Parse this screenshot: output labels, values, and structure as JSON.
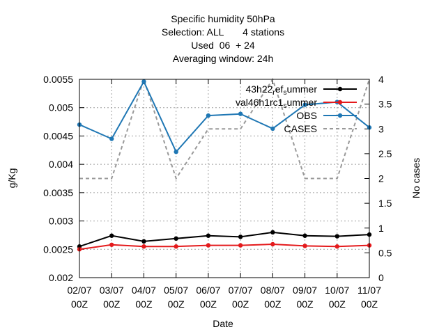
{
  "chart_data": {
    "type": "line",
    "title_lines": [
      "Specific humidity 50hPa",
      "Selection: ALL       4 stations",
      "Used  06  + 24",
      "Averaging window: 24h"
    ],
    "xlabel": "Date",
    "ylabel": "g/Kg",
    "y2label": "No cases",
    "categories": [
      [
        "02/07",
        "00Z"
      ],
      [
        "03/07",
        "00Z"
      ],
      [
        "04/07",
        "00Z"
      ],
      [
        "05/07",
        "00Z"
      ],
      [
        "06/07",
        "00Z"
      ],
      [
        "07/07",
        "00Z"
      ],
      [
        "08/07",
        "00Z"
      ],
      [
        "09/07",
        "00Z"
      ],
      [
        "10/07",
        "00Z"
      ],
      [
        "11/07",
        "00Z"
      ]
    ],
    "ylim": [
      0.002,
      0.0055
    ],
    "yticks": [
      "0.002",
      "0.0025",
      "0.003",
      "0.0035",
      "0.004",
      "0.0045",
      "0.005",
      "0.0055"
    ],
    "y2lim": [
      0,
      4
    ],
    "y2ticks": [
      "0",
      "0.5",
      "1",
      "1.5",
      "2",
      "2.5",
      "3",
      "3.5",
      "4"
    ],
    "grid": true,
    "legend_position": "top-right",
    "series": [
      {
        "name": "43h22_ref_summer",
        "legend_label": {
          "main": "43h22",
          "sub1": "r",
          "mid": "ef",
          "sub2": "s",
          "tail": "ummer"
        },
        "color": "#000000",
        "axis": "y",
        "values": [
          0.00255,
          0.00274,
          0.00264,
          0.00269,
          0.00274,
          0.00272,
          0.0028,
          0.00274,
          0.00273,
          0.00276
        ]
      },
      {
        "name": "val46h1rc1_summer",
        "legend_label": {
          "main": "val46h1rc1",
          "sub1": "",
          "mid": "",
          "sub2": "s",
          "tail": "ummer"
        },
        "color": "#e41a1c",
        "axis": "y",
        "values": [
          0.0025,
          0.00258,
          0.00255,
          0.00255,
          0.00257,
          0.00257,
          0.00259,
          0.00256,
          0.00255,
          0.00257
        ]
      },
      {
        "name": "OBS",
        "legend_label": {
          "main": "OBS",
          "sub1": "",
          "mid": "",
          "sub2": "",
          "tail": ""
        },
        "color": "#1f77b4",
        "axis": "y",
        "values": [
          0.0047,
          0.00445,
          0.00546,
          0.00422,
          0.00486,
          0.00489,
          0.00463,
          0.00505,
          0.0051,
          0.00465
        ]
      },
      {
        "name": "CASES",
        "legend_label": {
          "main": "CASES",
          "sub1": "",
          "mid": "",
          "sub2": "",
          "tail": ""
        },
        "color": "#999999",
        "axis": "y2",
        "dashed": true,
        "values": [
          2,
          2,
          4,
          2,
          3,
          3,
          4,
          2,
          2,
          4
        ]
      }
    ]
  }
}
